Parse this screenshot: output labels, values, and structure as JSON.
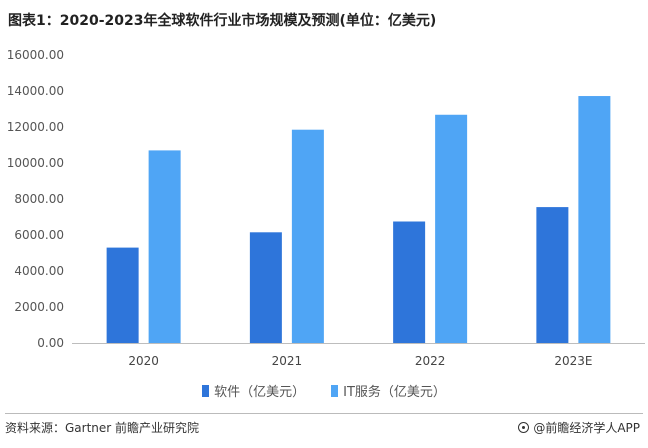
{
  "title": "图表1：2020-2023年全球软件行业市场规模及预测(单位：亿美元)",
  "chart_data": {
    "type": "bar",
    "title": "图表1：2020-2023年全球软件行业市场规模及预测(单位：亿美元)",
    "categories": [
      "2020",
      "2021",
      "2022",
      "2023E"
    ],
    "series": [
      {
        "name": "软件（亿美元）",
        "color": "#2E75DA",
        "values": [
          5300,
          6150,
          6750,
          7550
        ]
      },
      {
        "name": "IT服务（亿美元）",
        "color": "#4FA5F5",
        "values": [
          10700,
          11850,
          12680,
          13720
        ]
      }
    ],
    "yticks": [
      "0.00",
      "2000.00",
      "4000.00",
      "6000.00",
      "8000.00",
      "10000.00",
      "12000.00",
      "14000.00",
      "16000.00"
    ],
    "ylim": [
      0,
      16000
    ],
    "xlabel": "",
    "ylabel": "",
    "grid": false,
    "legend_position": "bottom-center"
  },
  "footer": {
    "source": "资料来源：Gartner 前瞻产业研究院",
    "brand": "@前瞻经济学人APP"
  }
}
